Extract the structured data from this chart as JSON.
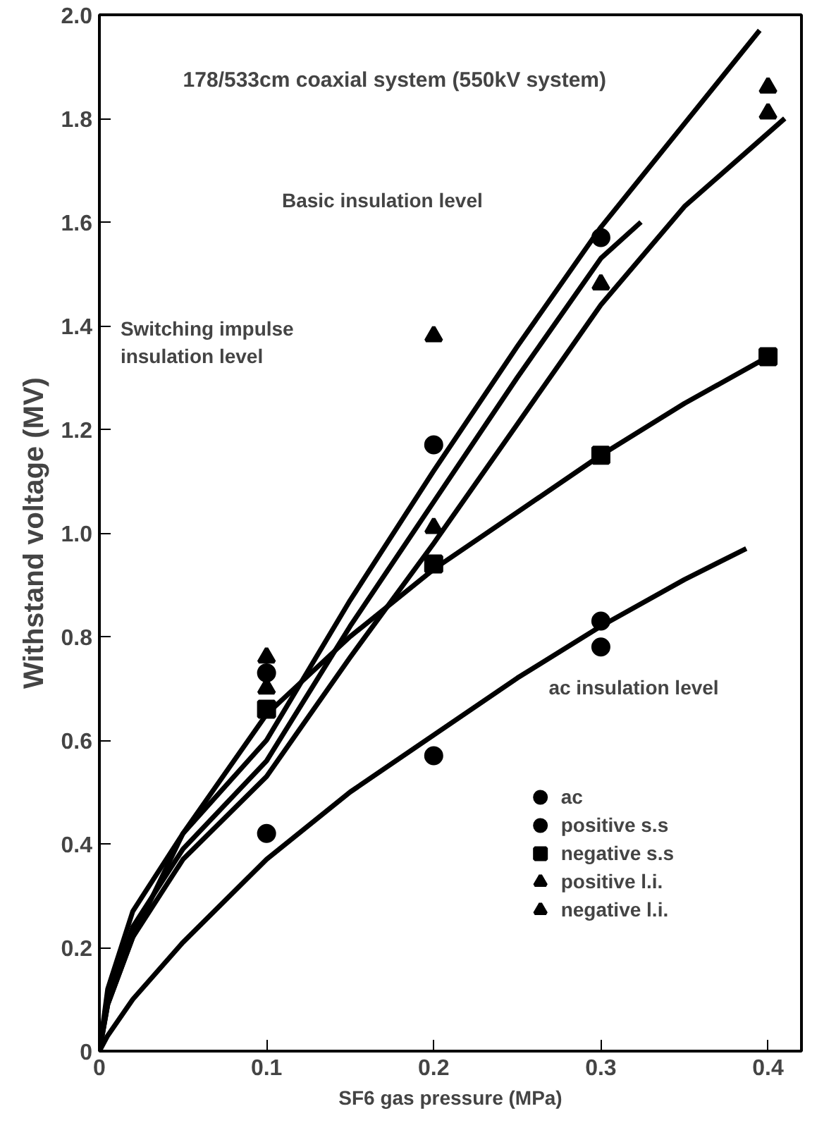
{
  "chart_data": {
    "type": "line",
    "title": "178/533cm coaxial system (550kV system)",
    "xlabel": "SF6 gas pressure (MPa)",
    "ylabel": "Withstand voltage (MV)",
    "xlim": [
      0,
      0.42
    ],
    "ylim": [
      0,
      2.0
    ],
    "xticks": [
      0,
      0.1,
      0.2,
      0.3,
      0.4
    ],
    "yticks": [
      0,
      {
        "value": 0.2,
        "label": "0.2"
      },
      {
        "value": 0.4,
        "label": "0.4"
      },
      {
        "value": 0.6,
        "label": "0.6"
      },
      {
        "value": 0.8,
        "label": "0.8"
      },
      {
        "value": 1.0,
        "label": "1.0"
      },
      {
        "value": 1.2,
        "label": "1.2"
      },
      {
        "value": 1.4,
        "label": "1.4"
      },
      {
        "value": 1.6,
        "label": "1.6"
      },
      {
        "value": 1.8,
        "label": "1.8"
      },
      {
        "value": 2.0,
        "label": "2.0"
      }
    ],
    "grid": false,
    "legend": "bottom right",
    "line_style": "solid",
    "series": [
      {
        "color": "#000000",
        "x": [
          0,
          0.005,
          0.02,
          0.05,
          0.1,
          0.15,
          0.2,
          0.25,
          0.3,
          0.35,
          0.395
        ],
        "values": [
          0,
          0.12,
          0.27,
          0.42,
          0.6,
          0.87,
          1.12,
          1.36,
          1.59,
          1.79,
          1.97
        ]
      },
      {
        "color": "#000000",
        "x": [
          0,
          0.005,
          0.02,
          0.05,
          0.1,
          0.15,
          0.2,
          0.25,
          0.3,
          0.324
        ],
        "values": [
          0,
          0.1,
          0.24,
          0.39,
          0.56,
          0.82,
          1.06,
          1.3,
          1.53,
          1.6
        ]
      },
      {
        "color": "#000000",
        "x": [
          0,
          0.005,
          0.02,
          0.05,
          0.1,
          0.15,
          0.2,
          0.25,
          0.3,
          0.35,
          0.41
        ],
        "values": [
          0,
          0.09,
          0.22,
          0.37,
          0.53,
          0.76,
          0.98,
          1.21,
          1.44,
          1.63,
          1.8
        ]
      },
      {
        "color": "#000000",
        "x": [
          0,
          0.005,
          0.02,
          0.05,
          0.1,
          0.15,
          0.2,
          0.25,
          0.3,
          0.35,
          0.4
        ],
        "values": [
          0,
          0.09,
          0.22,
          0.42,
          0.65,
          0.8,
          0.93,
          1.04,
          1.15,
          1.25,
          1.34
        ]
      },
      {
        "color": "#000000",
        "x": [
          0,
          0.005,
          0.02,
          0.05,
          0.1,
          0.15,
          0.2,
          0.25,
          0.3,
          0.35,
          0.387
        ],
        "values": [
          0,
          0.03,
          0.1,
          0.21,
          0.37,
          0.5,
          0.61,
          0.72,
          0.82,
          0.91,
          0.97
        ]
      },
      {
        "type": "scatter",
        "name": "ac",
        "marker": "circle",
        "color": "#000000",
        "x": [
          0.1,
          0.2,
          0.3,
          0.3
        ],
        "values": [
          0.42,
          0.57,
          0.78,
          0.83
        ]
      },
      {
        "type": "scatter",
        "name": "positive s.s",
        "marker": "circle",
        "color": "#000000",
        "x": [
          0.1,
          0.2,
          0.3
        ],
        "values": [
          0.73,
          1.17,
          1.57
        ]
      },
      {
        "type": "scatter",
        "name": "negative s.s",
        "marker": "square",
        "color": "#000000",
        "x": [
          0.1,
          0.2,
          0.3,
          0.4
        ],
        "values": [
          0.66,
          0.94,
          1.15,
          1.34
        ]
      },
      {
        "type": "scatter",
        "name": "positive l.i.",
        "marker": "triangle",
        "color": "#000000",
        "x": [
          0.1,
          0.2,
          0.4
        ],
        "values": [
          0.76,
          1.38,
          1.86
        ]
      },
      {
        "type": "scatter",
        "name": "negative l.i.",
        "marker": "triangle",
        "color": "#000000",
        "x": [
          0.1,
          0.2,
          0.3,
          0.4
        ],
        "values": [
          0.7,
          1.01,
          1.48,
          1.81
        ]
      }
    ],
    "annotations": [
      "Basic insulation level",
      "Switching impulse insulation level",
      "ac insulation level"
    ]
  }
}
